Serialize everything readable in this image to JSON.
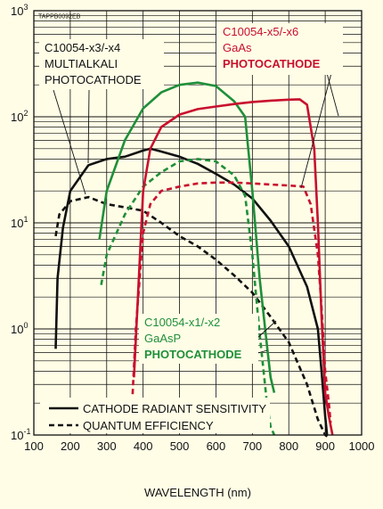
{
  "chart_data": {
    "type": "line",
    "code": "TAPPB0092EB",
    "xlabel": "WAVELENGTH (nm)",
    "ylabel": "",
    "xlim": [
      100,
      1000
    ],
    "ylim": [
      0.1,
      1000
    ],
    "yscale": "log",
    "grid": true,
    "x_ticks": [
      "100",
      "200",
      "300",
      "400",
      "500",
      "600",
      "700",
      "800",
      "900",
      "1000"
    ],
    "y_ticks": [
      {
        "base": "10",
        "exp": "3",
        "value": 1000
      },
      {
        "base": "10",
        "exp": "2",
        "value": 100
      },
      {
        "base": "10",
        "exp": "1",
        "value": 10
      },
      {
        "base": "10",
        "exp": "0",
        "value": 1
      },
      {
        "base": "10",
        "exp": "-1",
        "value": 0.1
      }
    ],
    "legend_position": "bottom-left",
    "legend": [
      {
        "label": "CATHODE RADIANT SENSITIVITY",
        "style": "solid"
      },
      {
        "label": "QUANTUM EFFICIENCY",
        "style": "dashed"
      }
    ],
    "annotations": [
      {
        "lines": [
          "C10054-x3/-x4",
          "MULTIALKALI",
          "PHOTOCATHODE"
        ],
        "color": "#111111"
      },
      {
        "lines": [
          "C10054-x5/-x6",
          "GaAs",
          "PHOTOCATHODE"
        ],
        "color": "#c8102e"
      },
      {
        "lines": [
          "C10054-x1/-x2",
          "GaAsP",
          "PHOTOCATHODE"
        ],
        "color": "#1f8f3a"
      }
    ],
    "series": [
      {
        "group": "multialkali",
        "style": "solid",
        "color": "#111111",
        "x": [
          160,
          165,
          180,
          200,
          250,
          300,
          350,
          400,
          420,
          450,
          500,
          550,
          600,
          650,
          700,
          750,
          800,
          850,
          880,
          890,
          900,
          905
        ],
        "y": [
          0.65,
          3,
          9,
          20,
          35,
          40,
          42,
          48,
          50,
          47,
          42,
          36,
          29,
          23,
          17,
          10.5,
          6,
          2.5,
          1,
          0.4,
          0.15,
          0.1
        ]
      },
      {
        "group": "multialkali",
        "style": "dashed",
        "color": "#111111",
        "x": [
          160,
          170,
          200,
          250,
          300,
          350,
          400,
          450,
          500,
          550,
          600,
          650,
          700,
          750,
          800,
          850,
          880,
          900,
          910
        ],
        "y": [
          7.5,
          12,
          16,
          17.5,
          15,
          14,
          13,
          10,
          7.5,
          6,
          4.5,
          3.2,
          2.2,
          1.3,
          0.75,
          0.3,
          0.14,
          0.1,
          0.095
        ]
      },
      {
        "group": "gaasp",
        "style": "solid",
        "color": "#1f8f3a",
        "x": [
          280,
          300,
          350,
          400,
          450,
          500,
          550,
          600,
          650,
          680,
          700,
          720,
          740,
          750,
          760
        ],
        "y": [
          7,
          20,
          60,
          120,
          170,
          200,
          210,
          195,
          140,
          100,
          20,
          3,
          0.7,
          0.35,
          0.25
        ]
      },
      {
        "group": "gaasp",
        "style": "dashed",
        "color": "#1f8f3a",
        "x": [
          285,
          300,
          350,
          400,
          450,
          500,
          550,
          600,
          650,
          680,
          700,
          720,
          740,
          750,
          760
        ],
        "y": [
          2.6,
          5,
          12,
          22,
          30,
          38,
          40,
          38,
          28,
          18,
          5,
          0.9,
          0.2,
          0.12,
          0.1
        ]
      },
      {
        "group": "gaas",
        "style": "solid",
        "color": "#c8102e",
        "x": [
          375,
          390,
          400,
          420,
          450,
          500,
          550,
          600,
          650,
          700,
          750,
          800,
          830,
          850,
          870,
          880,
          890,
          900,
          910,
          920
        ],
        "y": [
          0.35,
          4,
          20,
          50,
          80,
          105,
          118,
          125,
          132,
          138,
          142,
          145,
          146,
          130,
          50,
          10,
          1.3,
          0.25,
          0.15,
          0.1
        ]
      },
      {
        "group": "gaas",
        "style": "dashed",
        "color": "#c8102e",
        "x": [
          370,
          380,
          400,
          420,
          450,
          500,
          550,
          600,
          650,
          700,
          750,
          800,
          840,
          860,
          880,
          890,
          900,
          910,
          915
        ],
        "y": [
          0.2,
          1,
          8,
          15,
          20,
          22,
          23.5,
          24,
          24,
          23.5,
          23,
          22.5,
          22,
          15,
          5,
          1.6,
          0.4,
          0.2,
          0.13
        ]
      }
    ]
  }
}
